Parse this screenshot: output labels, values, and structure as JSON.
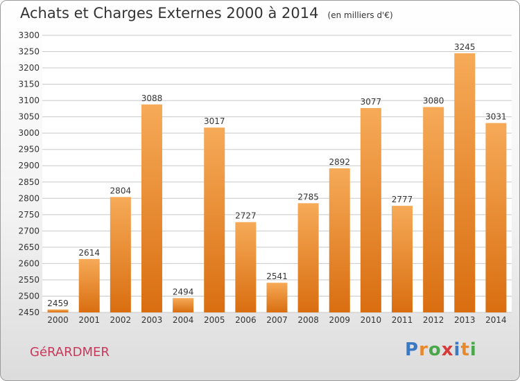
{
  "chart": {
    "title": "Achats et Charges Externes 2000 à 2014",
    "subtitle": "(en milliers d'€)"
  },
  "footer": {
    "commune": "GéRARDMER",
    "brand_letters": [
      "P",
      "r",
      "o",
      "x",
      "i",
      "t",
      "i"
    ],
    "brand_colors": [
      "#3a78c2",
      "#e8882c",
      "#4aa84a",
      "#d63a3a",
      "#3a78c2",
      "#e8882c",
      "#4aa84a"
    ]
  },
  "colors": {
    "bar_top": "#f6aa58",
    "bar_bottom": "#d96e10",
    "grid": "#c8c8c8"
  },
  "chart_data": {
    "type": "bar",
    "title": "Achats et Charges Externes 2000 à 2014",
    "subtitle": "(en milliers d'€)",
    "categories": [
      "2000",
      "2001",
      "2002",
      "2003",
      "2004",
      "2005",
      "2006",
      "2007",
      "2008",
      "2009",
      "2010",
      "2011",
      "2012",
      "2013",
      "2014"
    ],
    "values": [
      2459,
      2614,
      2804,
      3088,
      2494,
      3017,
      2727,
      2541,
      2785,
      2892,
      3077,
      2777,
      3080,
      3245,
      3031
    ],
    "ylim": [
      2450,
      3300
    ],
    "yticks": [
      2450,
      2500,
      2550,
      2600,
      2650,
      2700,
      2750,
      2800,
      2850,
      2900,
      2950,
      3000,
      3050,
      3100,
      3150,
      3200,
      3250,
      3300
    ],
    "grid": true,
    "xlabel": "",
    "ylabel": ""
  }
}
